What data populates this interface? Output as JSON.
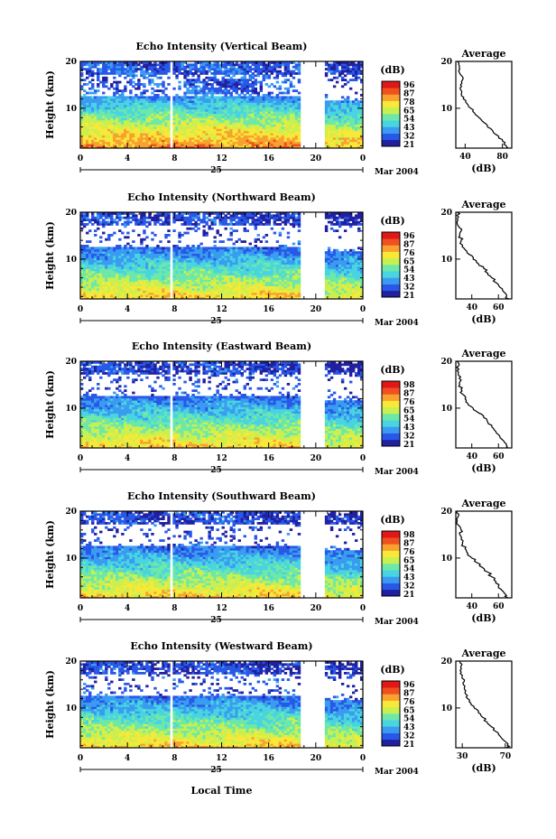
{
  "chart_data": {
    "type": "heatmap",
    "date_label": "25",
    "date_month": "Mar 2004",
    "xlabel_main": "Local Time",
    "x_ticks": [
      "0",
      "4",
      "8",
      "12",
      "16",
      "20",
      "0"
    ],
    "x_range_hours": [
      0,
      24
    ],
    "data_gap_hours": [
      18.8,
      20.8
    ],
    "data_gap2_hours": [
      7.6,
      7.8
    ],
    "ylabel": "Height (km)",
    "y_ticks": [
      "20",
      "10"
    ],
    "y_range_km": [
      1.5,
      20
    ],
    "colorbar_unit": "(dB)",
    "avg_title": "Average",
    "avg_xlabel": "(dB)",
    "panels": [
      {
        "title": "Echo Intensity (Vertical Beam)",
        "colorbar_ticks": [
          "96",
          "87",
          "78",
          "65",
          "54",
          "43",
          "32",
          "21"
        ],
        "avg_x_ticks": [
          "40",
          "80"
        ],
        "avg_xlim": [
          30,
          90
        ],
        "avg_profile": [
          [
            1.5,
            86
          ],
          [
            2,
            84
          ],
          [
            3,
            80
          ],
          [
            4,
            76
          ],
          [
            5,
            70
          ],
          [
            6,
            64
          ],
          [
            7,
            60
          ],
          [
            8,
            55
          ],
          [
            9,
            50
          ],
          [
            10,
            46
          ],
          [
            11,
            42
          ],
          [
            12,
            38
          ],
          [
            13,
            36
          ],
          [
            14,
            35
          ],
          [
            15,
            35
          ],
          [
            16,
            37
          ],
          [
            17,
            36
          ],
          [
            18,
            33
          ],
          [
            19,
            34
          ],
          [
            20,
            32
          ]
        ]
      },
      {
        "title": "Echo Intensity (Northward Beam)",
        "colorbar_ticks": [
          "96",
          "87",
          "76",
          "65",
          "54",
          "43",
          "32",
          "21"
        ],
        "avg_x_ticks": [
          "40",
          "60"
        ],
        "avg_xlim": [
          28,
          70
        ],
        "avg_profile": [
          [
            1.5,
            68
          ],
          [
            2,
            66
          ],
          [
            3,
            64
          ],
          [
            4,
            61
          ],
          [
            5,
            58
          ],
          [
            6,
            55
          ],
          [
            7,
            52
          ],
          [
            8,
            49
          ],
          [
            9,
            45
          ],
          [
            10,
            41
          ],
          [
            11,
            38
          ],
          [
            12,
            35
          ],
          [
            13,
            33
          ],
          [
            14,
            32
          ],
          [
            15,
            31
          ],
          [
            16,
            32
          ],
          [
            17,
            30
          ],
          [
            18,
            29
          ],
          [
            19,
            30
          ],
          [
            20,
            29
          ]
        ]
      },
      {
        "title": "Echo Intensity (Eastward Beam)",
        "colorbar_ticks": [
          "98",
          "87",
          "76",
          "65",
          "54",
          "43",
          "32",
          "21"
        ],
        "avg_x_ticks": [
          "40",
          "60"
        ],
        "avg_xlim": [
          28,
          70
        ],
        "avg_profile": [
          [
            1.5,
            67
          ],
          [
            2,
            66
          ],
          [
            3,
            64
          ],
          [
            4,
            61
          ],
          [
            5,
            58
          ],
          [
            6,
            55
          ],
          [
            7,
            52
          ],
          [
            8,
            49
          ],
          [
            9,
            45
          ],
          [
            10,
            41
          ],
          [
            11,
            37
          ],
          [
            12,
            35
          ],
          [
            13,
            33
          ],
          [
            14,
            32
          ],
          [
            15,
            31
          ],
          [
            16,
            32
          ],
          [
            17,
            30
          ],
          [
            18,
            29
          ],
          [
            19,
            30
          ],
          [
            20,
            29
          ]
        ]
      },
      {
        "title": "Echo Intensity (Southward Beam)",
        "colorbar_ticks": [
          "98",
          "87",
          "76",
          "65",
          "54",
          "43",
          "32",
          "21"
        ],
        "avg_x_ticks": [
          "40",
          "60"
        ],
        "avg_xlim": [
          28,
          70
        ],
        "avg_profile": [
          [
            1.5,
            67
          ],
          [
            2,
            66
          ],
          [
            3,
            63
          ],
          [
            4,
            60
          ],
          [
            5,
            58
          ],
          [
            6,
            55
          ],
          [
            7,
            52
          ],
          [
            8,
            48
          ],
          [
            9,
            44
          ],
          [
            10,
            40
          ],
          [
            11,
            37
          ],
          [
            12,
            35
          ],
          [
            13,
            33
          ],
          [
            14,
            32
          ],
          [
            15,
            31
          ],
          [
            16,
            32
          ],
          [
            17,
            30
          ],
          [
            18,
            29
          ],
          [
            19,
            30
          ],
          [
            20,
            29
          ]
        ]
      },
      {
        "title": "Echo Intensity (Westward Beam)",
        "colorbar_ticks": [
          "96",
          "87",
          "76",
          "65",
          "54",
          "43",
          "32",
          "21"
        ],
        "avg_x_ticks": [
          "30",
          "70"
        ],
        "avg_xlim": [
          24,
          76
        ],
        "avg_profile": [
          [
            1.5,
            74
          ],
          [
            2,
            72
          ],
          [
            3,
            69
          ],
          [
            4,
            65
          ],
          [
            5,
            61
          ],
          [
            6,
            57
          ],
          [
            7,
            53
          ],
          [
            8,
            49
          ],
          [
            9,
            45
          ],
          [
            10,
            41
          ],
          [
            11,
            38
          ],
          [
            12,
            35
          ],
          [
            13,
            33
          ],
          [
            14,
            32
          ],
          [
            15,
            31
          ],
          [
            16,
            32
          ],
          [
            17,
            30
          ],
          [
            18,
            28
          ],
          [
            19,
            29
          ],
          [
            20,
            28
          ]
        ]
      }
    ]
  },
  "colors": {
    "scale": [
      "#2020a0",
      "#2858e8",
      "#3a9cf0",
      "#48d4e0",
      "#6ee8a8",
      "#c8f050",
      "#f8e838",
      "#f8a030",
      "#f05020",
      "#e01818"
    ],
    "axis": "#000000",
    "background": "#ffffff"
  }
}
